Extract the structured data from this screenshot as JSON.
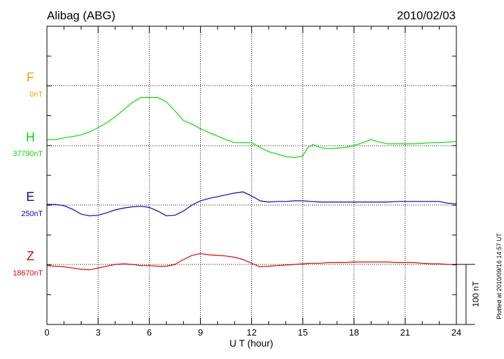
{
  "chart_data": {
    "type": "line",
    "title_left": "Alibag (ABG)",
    "title_right": "2010/02/03",
    "xlabel": "U T (hour)",
    "xlim": [
      0,
      24
    ],
    "xticks": [
      0,
      3,
      6,
      9,
      12,
      15,
      18,
      21,
      24
    ],
    "xtick_labels": [
      "0",
      "3",
      "6",
      "9",
      "12",
      "15",
      "18",
      "21",
      "24"
    ],
    "scale_bar_label": "100 nT",
    "footnote": "Plotted at 2010/09/16 14:57 UT",
    "colors": {
      "F": "#f0a000",
      "H": "#00dd00",
      "E": "#0000cc",
      "Z": "#dd0000",
      "frame": "#000000"
    },
    "series": [
      {
        "name": "F",
        "baseline_label": "0nT",
        "color": "#f0a000",
        "x": [],
        "y": []
      },
      {
        "name": "H",
        "baseline_label": "37790nT",
        "color": "#00dd00",
        "x": [
          0,
          0.5,
          1,
          1.5,
          2,
          2.5,
          3,
          3.5,
          4,
          4.5,
          5,
          5.5,
          6,
          6.5,
          7,
          7.5,
          8,
          8.5,
          9,
          9.5,
          10,
          10.5,
          11,
          11.5,
          12,
          12.5,
          13,
          13.5,
          14,
          14.5,
          15,
          15.3,
          15.6,
          16,
          16.5,
          17,
          17.5,
          18,
          18.5,
          19,
          19.5,
          20,
          20.5,
          21,
          21.5,
          22,
          22.5,
          23,
          23.5,
          24
        ],
        "y": [
          37800,
          37800,
          37803,
          37805,
          37808,
          37813,
          37820,
          37828,
          37838,
          37850,
          37862,
          37870,
          37870,
          37870,
          37863,
          37848,
          37832,
          37826,
          37818,
          37812,
          37806,
          37800,
          37795,
          37795,
          37795,
          37787,
          37780,
          37776,
          37772,
          37770,
          37773,
          37787,
          37792,
          37787,
          37785,
          37786,
          37787,
          37790,
          37795,
          37800,
          37796,
          37793,
          37793,
          37793,
          37793,
          37794,
          37795,
          37795,
          37796,
          37797
        ]
      },
      {
        "name": "E",
        "baseline_label": "250nT",
        "color": "#0000cc",
        "x": [
          0,
          0.5,
          1,
          1.5,
          2,
          2.5,
          3,
          3.5,
          4,
          4.5,
          5,
          5.5,
          6,
          6.5,
          7,
          7.5,
          8,
          8.5,
          9,
          9.5,
          10,
          10.5,
          11,
          11.5,
          12,
          12.5,
          13,
          13.5,
          14,
          14.5,
          15,
          15.5,
          16,
          16.5,
          17,
          17.5,
          18,
          18.5,
          19,
          19.5,
          20,
          20.5,
          21,
          21.5,
          22,
          22.5,
          23,
          23.5,
          24
        ],
        "y": [
          251,
          251,
          249,
          243,
          235,
          232,
          233,
          237,
          242,
          245,
          247,
          248,
          246,
          240,
          232,
          233,
          240,
          250,
          257,
          261,
          264,
          267,
          270,
          272,
          265,
          257,
          255,
          256,
          256,
          257,
          257,
          256,
          255,
          255,
          255,
          255,
          255,
          255,
          255,
          255,
          255,
          256,
          256,
          256,
          256,
          256,
          256,
          253,
          252
        ]
      },
      {
        "name": "Z",
        "baseline_label": "18670nT",
        "color": "#dd0000",
        "x": [
          0,
          0.5,
          1,
          1.5,
          2,
          2.5,
          3,
          3.5,
          4,
          4.5,
          5,
          5.5,
          6,
          6.5,
          7,
          7.5,
          8,
          8.5,
          9,
          9.5,
          10,
          10.5,
          11,
          11.5,
          12,
          12.5,
          13,
          13.5,
          14,
          14.5,
          15,
          15.5,
          16,
          16.5,
          17,
          17.5,
          18,
          18.5,
          19,
          19.5,
          20,
          20.5,
          21,
          21.5,
          22,
          22.5,
          23,
          23.5,
          24
        ],
        "y": [
          18668,
          18667,
          18666,
          18664,
          18662,
          18661,
          18664,
          18667,
          18670,
          18671,
          18670,
          18668,
          18668,
          18667,
          18667,
          18670,
          18678,
          18685,
          18688,
          18686,
          18685,
          18684,
          18682,
          18678,
          18672,
          18666,
          18667,
          18668,
          18669,
          18670,
          18671,
          18672,
          18672,
          18673,
          18673,
          18673,
          18674,
          18674,
          18674,
          18674,
          18674,
          18673,
          18673,
          18673,
          18672,
          18671,
          18671,
          18670,
          18670
        ]
      }
    ]
  }
}
